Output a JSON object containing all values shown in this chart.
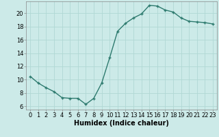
{
  "x": [
    0,
    1,
    2,
    3,
    4,
    5,
    6,
    7,
    8,
    9,
    10,
    11,
    12,
    13,
    14,
    15,
    16,
    17,
    18,
    19,
    20,
    21,
    22,
    23
  ],
  "y": [
    10.5,
    9.5,
    8.8,
    8.2,
    7.3,
    7.2,
    7.2,
    6.3,
    7.2,
    9.5,
    13.3,
    17.3,
    18.5,
    19.3,
    19.9,
    21.2,
    21.1,
    20.5,
    20.2,
    19.3,
    18.8,
    18.7,
    18.6,
    18.4
  ],
  "xlabel": "Humidex (Indice chaleur)",
  "ylim": [
    5.5,
    21.8
  ],
  "xlim": [
    -0.5,
    23.5
  ],
  "yticks": [
    6,
    8,
    10,
    12,
    14,
    16,
    18,
    20
  ],
  "xticks": [
    0,
    1,
    2,
    3,
    4,
    5,
    6,
    7,
    8,
    9,
    10,
    11,
    12,
    13,
    14,
    15,
    16,
    17,
    18,
    19,
    20,
    21,
    22,
    23
  ],
  "line_color": "#2d7a6e",
  "marker": "+",
  "marker_size": 3.5,
  "bg_color": "#cceae8",
  "grid_color": "#b0d8d4",
  "line_width": 1.0,
  "xlabel_fontsize": 7,
  "tick_fontsize": 6
}
